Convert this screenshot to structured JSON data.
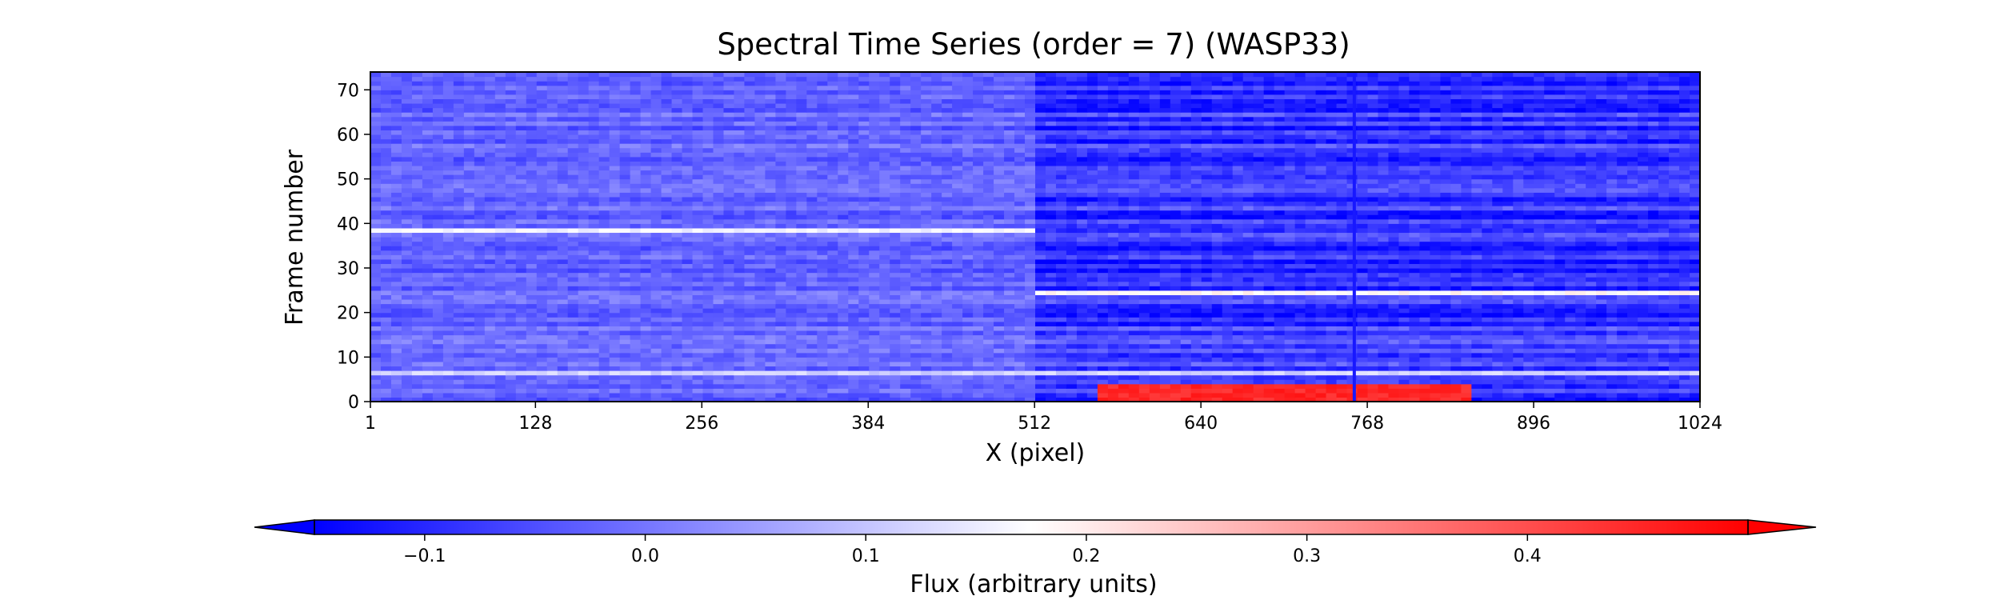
{
  "chart_data": {
    "type": "heatmap",
    "title": "Spectral Time Series (order = 7) (WASP33)",
    "xlabel": "X (pixel)",
    "ylabel": "Frame number",
    "xlim": [
      1,
      1024
    ],
    "ylim": [
      0,
      74
    ],
    "xticks": [
      1,
      128,
      256,
      384,
      512,
      640,
      768,
      896,
      1024
    ],
    "yticks": [
      0,
      10,
      20,
      30,
      40,
      50,
      60,
      70
    ],
    "colormap": "bwr",
    "colorbar": {
      "label": "Flux (arbitrary units)",
      "range": [
        -0.15,
        0.5
      ],
      "ticks": [
        -0.1,
        0.0,
        0.1,
        0.2,
        0.3,
        0.4
      ],
      "tick_labels": [
        "−0.1",
        "0.0",
        "0.1",
        "0.2",
        "0.3",
        "0.4"
      ],
      "extend": "both",
      "orientation": "horizontal"
    },
    "grid": false,
    "features": [
      {
        "description": "baseline flux",
        "x": [
          1,
          512
        ],
        "value": -0.02
      },
      {
        "description": "baseline flux",
        "x": [
          512,
          1024
        ],
        "value": -0.08
      },
      {
        "description": "bright row",
        "frame": 38,
        "x": [
          1,
          512
        ],
        "value": 0.16
      },
      {
        "description": "bright row",
        "frame": 24,
        "x": [
          512,
          1024
        ],
        "value": 0.18
      },
      {
        "description": "bright row",
        "frame": 6,
        "x": [
          1,
          1024
        ],
        "value": 0.12
      },
      {
        "description": "strong emission",
        "frame": [
          0,
          3
        ],
        "x": [
          560,
          850
        ],
        "value": 0.45
      },
      {
        "description": "vertical feature",
        "x": 758,
        "frames": [
          0,
          74
        ],
        "value": -0.12
      }
    ]
  }
}
